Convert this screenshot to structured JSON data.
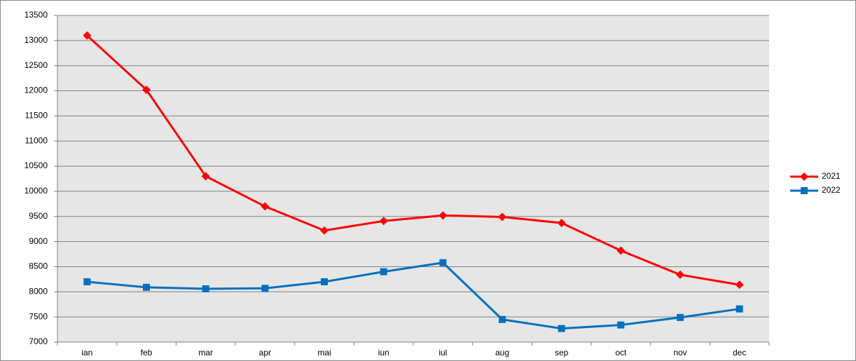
{
  "chart_data": {
    "type": "line",
    "categories": [
      "ian",
      "feb",
      "mar",
      "apr",
      "mai",
      "iun",
      "iul",
      "aug",
      "sep",
      "oct",
      "nov",
      "dec"
    ],
    "series": [
      {
        "name": "2021",
        "color": "#ff0000",
        "marker": "diamond",
        "values": [
          13100,
          12020,
          10300,
          9700,
          9220,
          9410,
          9520,
          9490,
          9370,
          8820,
          8340,
          8140
        ]
      },
      {
        "name": "2022",
        "color": "#0070c0",
        "marker": "square",
        "values": [
          8200,
          8090,
          8060,
          8070,
          8200,
          8400,
          8580,
          7450,
          7270,
          7340,
          7490,
          7660
        ]
      }
    ],
    "ylim": [
      7000,
      13500
    ],
    "yticks": [
      7000,
      7500,
      8000,
      8500,
      9000,
      9500,
      10000,
      10500,
      11000,
      11500,
      12000,
      12500,
      13000,
      13500
    ],
    "grid": true,
    "legend": "right"
  }
}
